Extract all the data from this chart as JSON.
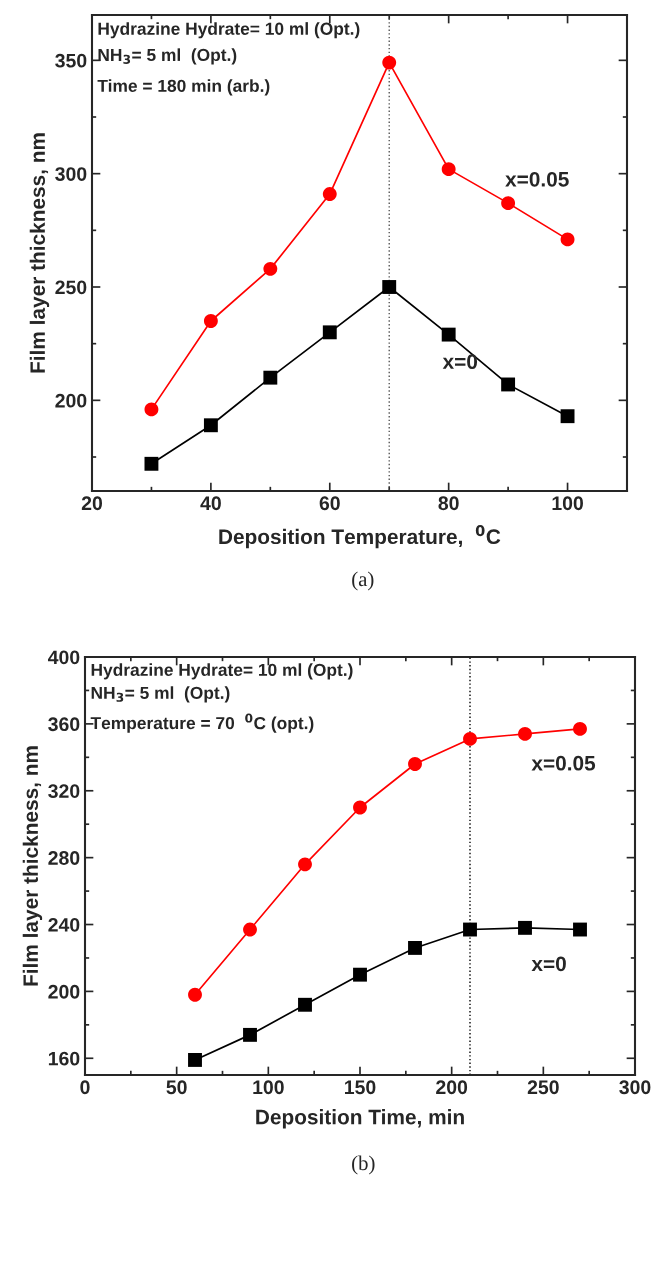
{
  "chart_data": [
    {
      "type": "line",
      "xlabel": "Deposition Temperature,  $^{0}$C",
      "ylabel": "Film layer thickness, nm",
      "annotations": [
        "Hydrazine Hydrate= 10 ml (Opt.)",
        "NH$_{3}$= 5 ml  (Opt.)",
        "Time = 180 min (arb.)",
        "(a)"
      ],
      "x": [
        30,
        40,
        50,
        60,
        70,
        80,
        90,
        100
      ],
      "series": [
        {
          "name": "x=0.05",
          "color": "#ff0000",
          "marker": "circle",
          "values": [
            196,
            235,
            258,
            291,
            349,
            302,
            287,
            271
          ]
        },
        {
          "name": "x=0",
          "color": "#000000",
          "marker": "square",
          "values": [
            172,
            189,
            210,
            230,
            250,
            229,
            207,
            193
          ]
        }
      ],
      "xlim": [
        20,
        110
      ],
      "xticks": [
        20,
        40,
        60,
        80,
        100
      ],
      "ylim": [
        160,
        370
      ],
      "yticks": [
        200,
        250,
        300,
        350
      ],
      "ref_lines": [
        {
          "axis": "x",
          "value": 70,
          "color": "#555555",
          "line_style": "dotted"
        }
      ],
      "grid": false,
      "legend": false,
      "line_style": "solid"
    },
    {
      "type": "line",
      "xlabel": "Deposition Time, min",
      "ylabel": "Film layer thickness, nm",
      "annotations": [
        "Hydrazine Hydrate= 10 ml (Opt.)",
        "NH$_{3}$= 5 ml  (Opt.)",
        "Temperature = 70  $^{0}$C (opt.)",
        "(b)"
      ],
      "x": [
        60,
        90,
        120,
        150,
        180,
        210,
        240,
        270
      ],
      "series": [
        {
          "name": "x=0.05",
          "color": "#ff0000",
          "marker": "circle",
          "values": [
            198,
            237,
            276,
            310,
            336,
            351,
            354,
            357
          ]
        },
        {
          "name": "x=0",
          "color": "#000000",
          "marker": "square",
          "values": [
            159,
            174,
            192,
            210,
            226,
            237,
            238,
            237
          ]
        }
      ],
      "xlim": [
        0,
        300
      ],
      "xticks": [
        0,
        50,
        100,
        150,
        200,
        250,
        300
      ],
      "ylim": [
        150,
        400
      ],
      "yticks": [
        160,
        200,
        240,
        280,
        320,
        360,
        400
      ],
      "ref_lines": [
        {
          "axis": "x",
          "value": 210,
          "color": "#000000",
          "line_style": "dotted"
        }
      ],
      "grid": false,
      "legend": false,
      "line_style": "solid"
    }
  ]
}
